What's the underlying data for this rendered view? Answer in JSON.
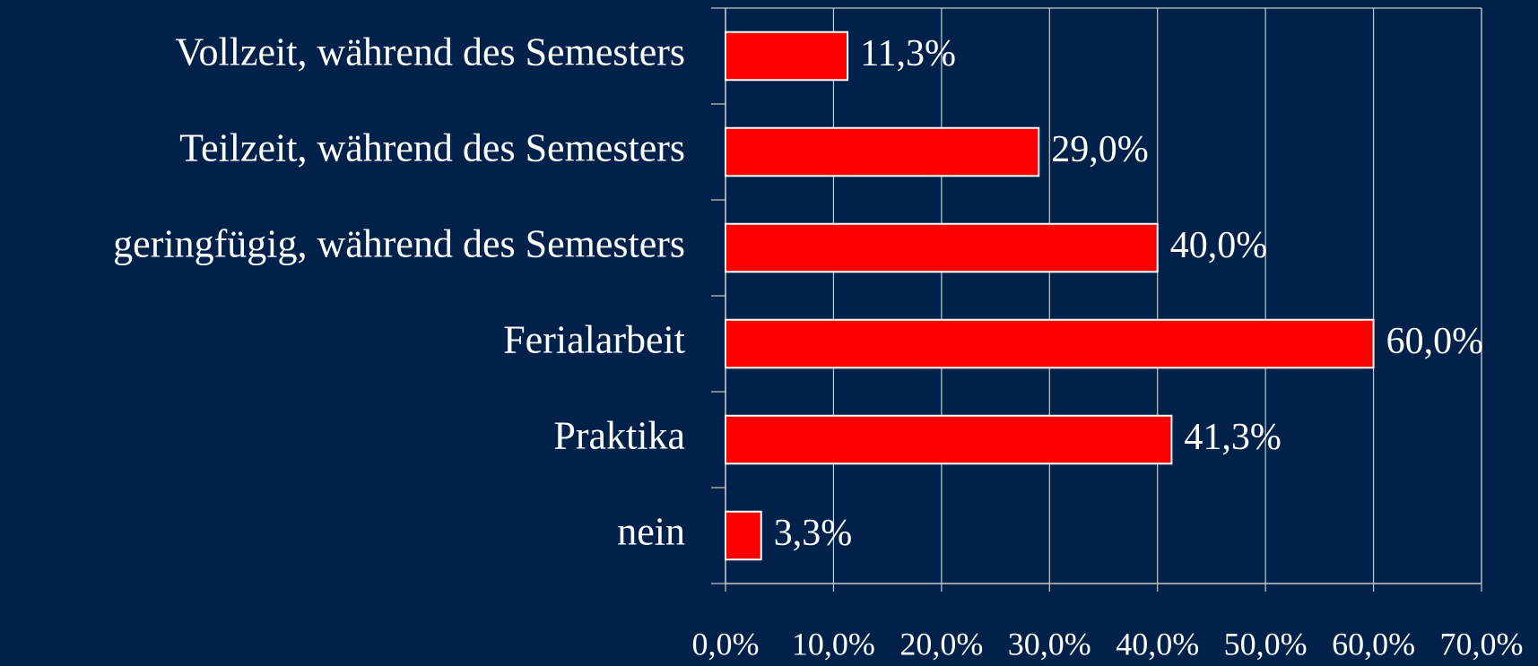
{
  "chart_data": {
    "type": "bar",
    "orientation": "horizontal",
    "categories": [
      "Vollzeit, während des Semesters",
      "Teilzeit, während des Semesters",
      "geringfügig, während des Semesters",
      "Ferialarbeit",
      "Praktika",
      "nein"
    ],
    "values": [
      11.3,
      29.0,
      40.0,
      60.0,
      41.3,
      3.3
    ],
    "value_labels": [
      "11,3%",
      "29,0%",
      "40,0%",
      "60,0%",
      "41,3%",
      "3,3%"
    ],
    "color": "#ff0000",
    "xlim": [
      0,
      70
    ],
    "xticks": [
      {
        "value": 0,
        "label": "0,0%"
      },
      {
        "value": 10,
        "label": "10,0%"
      },
      {
        "value": 20,
        "label": "20,0%"
      },
      {
        "value": 30,
        "label": "30,0%"
      },
      {
        "value": 40,
        "label": "40,0%"
      },
      {
        "value": 50,
        "label": "50,0%"
      },
      {
        "value": 60,
        "label": "60,0%"
      },
      {
        "value": 70,
        "label": "70,0%"
      }
    ],
    "grid": true
  }
}
